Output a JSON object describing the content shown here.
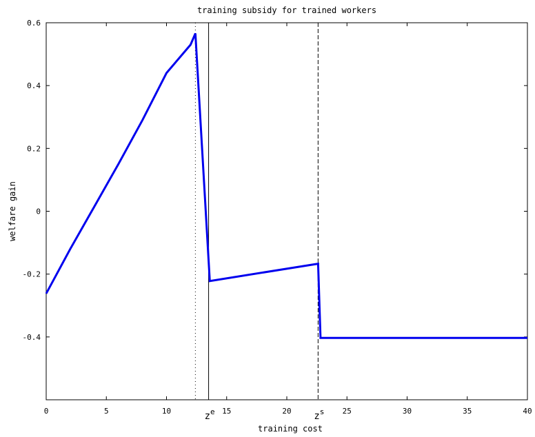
{
  "chart_data": {
    "type": "line",
    "title": "training subsidy for trained workers",
    "xlabel": "training cost",
    "ylabel": "welfare gain",
    "xlim": [
      0,
      40
    ],
    "ylim": [
      -0.6,
      0.6
    ],
    "x_ticks": [
      0,
      5,
      10,
      15,
      20,
      25,
      30,
      35,
      40
    ],
    "x_tick_labels": [
      "0",
      "5",
      "10",
      "15",
      "20",
      "25",
      "30",
      "35",
      "40"
    ],
    "y_ticks": [
      -0.4,
      -0.2,
      0,
      0.2,
      0.4,
      0.6
    ],
    "y_tick_labels": [
      "-0.4",
      "-0.2",
      "0",
      "0.2",
      "0.4",
      "0.6"
    ],
    "grid": false,
    "series": [
      {
        "color": "#0000ee",
        "x": [
          0,
          2,
          4,
          6,
          8,
          10,
          12,
          12.4,
          13.6,
          22.6,
          22.8,
          40
        ],
        "y": [
          -0.262,
          -0.12,
          0.015,
          0.15,
          0.29,
          0.44,
          0.53,
          0.566,
          -0.222,
          -0.167,
          -0.403,
          -0.403
        ]
      }
    ],
    "reference_lines": [
      {
        "x": 12.4,
        "style": "dotted",
        "color": "#000000"
      },
      {
        "x": 13.5,
        "style": "solid",
        "color": "#000000"
      },
      {
        "x": 22.6,
        "style": "dashed",
        "color": "#000000"
      }
    ],
    "annotations": [
      {
        "x": 13.5,
        "base": "z",
        "sup": "e"
      },
      {
        "x": 22.6,
        "base": "z",
        "sup": "s"
      }
    ]
  }
}
